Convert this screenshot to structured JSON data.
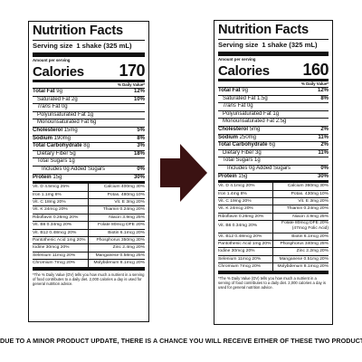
{
  "caption": "DUE TO A MINOR PRODUCT UPDATE, THERE IS A CHANCE YOU WILL RECEIVE EITHER OF THESE TWO PRODUCTS.",
  "arrow_color": "#3b1212",
  "left": {
    "title": "Nutrition Facts",
    "serving_label": "Serving size",
    "serving_value": "1 shake (325 mL)",
    "amount_per_serving": "Amount per serving",
    "calories_label": "Calories",
    "calories_value": "170",
    "dv_header": "% Daily Value*",
    "rows": {
      "total_fat": {
        "label": "Total Fat",
        "amount": "9g",
        "pct": "12%"
      },
      "sat_fat": {
        "label": "Saturated Fat 2g",
        "pct": "10%"
      },
      "trans_fat": {
        "label": "Trans",
        "amount": "Fat 0g"
      },
      "poly_fat": {
        "label": "Polyunsaturated Fat 1g"
      },
      "mono_fat": {
        "label": "Monounsaturated Fat 6g"
      },
      "cholesterol": {
        "label": "Cholesterol",
        "amount": "15mg",
        "pct": "5%"
      },
      "sodium": {
        "label": "Sodium",
        "amount": "190mg",
        "pct": "8%"
      },
      "carb": {
        "label": "Total Carbohydrate",
        "amount": "8g",
        "pct": "3%"
      },
      "fiber": {
        "label": "Dietary Fiber 5g",
        "pct": "18%"
      },
      "sugars": {
        "label": "Total Sugars 1g"
      },
      "added_sugars": {
        "label": "Includes 0g Added Sugars",
        "pct": "0%"
      },
      "protein": {
        "label": "Protein",
        "amount": "15g",
        "pct": "30%"
      }
    },
    "vitamins": [
      [
        "Vit. D 4.5mcg 25%",
        "Calcium 400mg 30%"
      ],
      [
        "Iron 1.1mg 6%",
        "Potas. 480mg 10%"
      ],
      [
        "Vit. C 18mg 20%",
        "Vit. E 3mg 20%"
      ],
      [
        "Vit. K 24mcg 20%",
        "Thiamin 0.24mg 20%"
      ],
      [
        "Riboflavin 0.26mg 20%",
        "Niacin 3.9mg 25%"
      ],
      [
        "Vit. B6 0.34mg 20%",
        "Folate 80mcg DFE 20%"
      ],
      [
        "Vit. B12 0.48mcg 20%",
        "Biotin 6.1mcg 20%"
      ],
      [
        "Pantothenic Acid 1mg 20%",
        "Phosphorus 350mg 30%"
      ],
      [
        "Iodine 30mcg 20%",
        "Zinc 2.4mg 20%"
      ],
      [
        "Selenium 11mcg 20%",
        "Manganese 0.58mg 25%"
      ],
      [
        "Chromium 7mcg 20%",
        "Molybdenum 8.1mcg 20%"
      ]
    ],
    "footnote": "*The % Daily Value (DV) tells you how much a nutrient in a serving of food contributes to a daily diet. 2,000 calories a day is used for general nutrition advice."
  },
  "right": {
    "title": "Nutrition Facts",
    "serving_label": "Serving size",
    "serving_value": "1 shake (325 mL)",
    "amount_per_serving": "Amount per serving",
    "calories_label": "Calories",
    "calories_value": "160",
    "dv_header": "% Daily Value*",
    "rows": {
      "total_fat": {
        "label": "Total Fat",
        "amount": "9g",
        "pct": "12%"
      },
      "sat_fat": {
        "label": "Saturated Fat 1.5g",
        "pct": "8%"
      },
      "trans_fat": {
        "label": "Trans",
        "amount": "Fat 0g"
      },
      "poly_fat": {
        "label": "Polyunsaturated Fat 1g"
      },
      "mono_fat": {
        "label": "Monounsaturated Fat 2.5g"
      },
      "cholesterol": {
        "label": "Cholesterol",
        "amount": "5mg",
        "pct": "2%"
      },
      "sodium": {
        "label": "Sodium",
        "amount": "250mg",
        "pct": "11%"
      },
      "carb": {
        "label": "Total Carbohydrate",
        "amount": "6g",
        "pct": "2%"
      },
      "fiber": {
        "label": "Dietary Fiber 3g",
        "pct": "11%"
      },
      "sugars": {
        "label": "Total Sugars 1g"
      },
      "added_sugars": {
        "label": "Includes 0g Added Sugars",
        "pct": "0%"
      },
      "protein": {
        "label": "Protein",
        "amount": "15g",
        "pct": "30%"
      }
    },
    "vitamins": [
      [
        "Vit. D 4.1mcg 20%",
        "Calcium 360mg 30%"
      ],
      [
        "Iron 1.4mg 8%",
        "Potas. 430mg 10%"
      ],
      [
        "Vit. C 19mg 20%",
        "Vit. E 3mg 20%"
      ],
      [
        "Vit. K 24mcg 20%",
        "Thiamin 0.24mg 20%"
      ],
      [
        "Riboflavin 0.26mg 20%",
        "Niacin 3.9mg 25%"
      ],
      [
        "Vit. B6 0.34mg 20%",
        "Folate 80mcg DFE 20% (47mcg Folic Acid)"
      ],
      [
        "Vit. B12 0.48mcg 20%",
        "Biotin 6.1mcg 20%"
      ],
      [
        "Pantothenic Acid 1mg 20%",
        "Phosphorus 340mg 25%"
      ],
      [
        "Iodine 30mcg 20%",
        "Zinc 2.2mg 20%"
      ],
      [
        "Selenium 11mcg 20%",
        "Manganese 0.51mg 20%"
      ],
      [
        "Chromium 7mcg 20%",
        "Molybdenum 8.1mcg 20%"
      ]
    ],
    "footnote": "*The % Daily Value (DV) tells you how much a nutrient in a serving of food contributes to a daily diet. 2,000 calories a day is used for general nutrition advice."
  }
}
